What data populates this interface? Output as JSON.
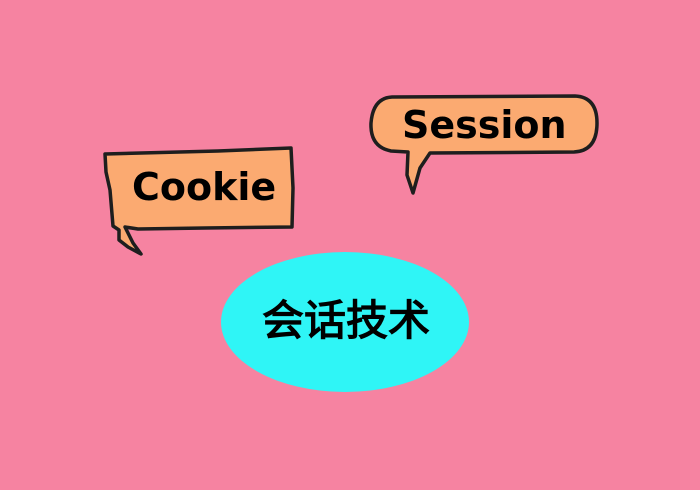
{
  "colors": {
    "background": "#F683A1",
    "bubble_fill": "#FBAA71",
    "bubble_stroke": "#1E1E1E",
    "ellipse_fill": "#2FF5F6",
    "text": "#000000"
  },
  "bubbles": {
    "cookie": {
      "label": "Cookie"
    },
    "session": {
      "label": "Session"
    }
  },
  "topic": {
    "label": "会话技术"
  }
}
